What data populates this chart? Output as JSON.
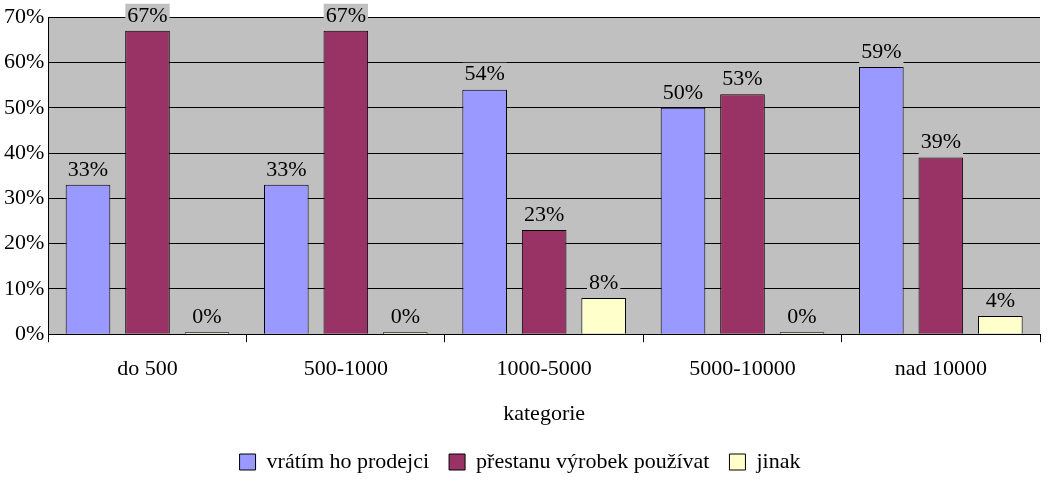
{
  "chart_data": {
    "type": "bar",
    "xlabel": "kategorie",
    "categories": [
      "do 500",
      "500-1000",
      "1000-5000",
      "5000-10000",
      "nad 10000"
    ],
    "series": [
      {
        "name": "vrátím ho prodejci",
        "color": "#9999ff",
        "values": [
          33,
          33,
          54,
          50,
          59
        ],
        "value_labels": [
          "33%",
          "33%",
          "54%",
          "50%",
          "59%"
        ]
      },
      {
        "name": "přestanu výrobek používat",
        "color": "#993366",
        "values": [
          67,
          67,
          23,
          53,
          39
        ],
        "value_labels": [
          "67%",
          "67%",
          "23%",
          "53%",
          "39%"
        ]
      },
      {
        "name": "jinak",
        "color": "#ffffcc",
        "values": [
          0,
          0,
          8,
          0,
          4
        ],
        "value_labels": [
          "0%",
          "0%",
          "8%",
          "0%",
          "4%"
        ]
      }
    ],
    "ylim": [
      0,
      70
    ],
    "yticks": [
      {
        "value": 0,
        "label": "0%"
      },
      {
        "value": 10,
        "label": "10%"
      },
      {
        "value": 20,
        "label": "20%"
      },
      {
        "value": 30,
        "label": "30%"
      },
      {
        "value": 40,
        "label": "40%"
      },
      {
        "value": 50,
        "label": "50%"
      },
      {
        "value": 60,
        "label": "60%"
      },
      {
        "value": 70,
        "label": "70%"
      }
    ],
    "grid": "y",
    "legend": "bottom"
  }
}
